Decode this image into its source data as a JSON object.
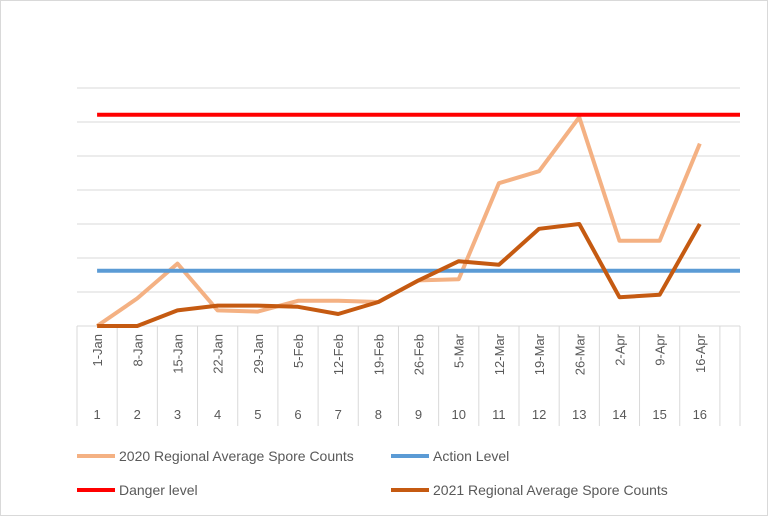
{
  "chart_data": {
    "type": "line",
    "x": [
      "1-Jan",
      "8-Jan",
      "15-Jan",
      "22-Jan",
      "29-Jan",
      "5-Feb",
      "12-Feb",
      "19-Feb",
      "26-Feb",
      "5-Mar",
      "12-Mar",
      "19-Mar",
      "26-Mar",
      "2-Apr",
      "9-Apr",
      "16-Apr"
    ],
    "x_index": [
      "1",
      "2",
      "3",
      "4",
      "5",
      "6",
      "7",
      "8",
      "9",
      "10",
      "11",
      "12",
      "13",
      "14",
      "15",
      "16"
    ],
    "ylim": [
      0,
      100
    ],
    "grid": true,
    "legend_position": "bottom",
    "series": [
      {
        "name": "2020 Regional Average Spore Counts",
        "color": "#F4B183",
        "values": [
          0,
          11.5,
          26,
          6.5,
          6,
          10.5,
          10.5,
          10,
          19,
          19.5,
          59.5,
          64.5,
          87,
          35.5,
          35.5,
          76
        ]
      },
      {
        "name": "Action Level",
        "color": "#5B9BD5",
        "values": [
          23,
          23,
          23,
          23,
          23,
          23,
          23,
          23,
          23,
          23,
          23,
          23,
          23,
          23,
          23,
          23
        ]
      },
      {
        "name": "Danger level",
        "color": "#FF0000",
        "values": [
          88,
          88,
          88,
          88,
          88,
          88,
          88,
          88,
          88,
          88,
          88,
          88,
          88,
          88,
          88,
          88
        ]
      },
      {
        "name": "2021 Regional Average Spore Counts",
        "color": "#C55A11",
        "values": [
          0,
          0,
          6.5,
          8.5,
          8.5,
          8,
          5,
          10,
          19,
          27,
          25.5,
          40.5,
          42.5,
          12,
          13,
          42.5
        ]
      }
    ]
  }
}
